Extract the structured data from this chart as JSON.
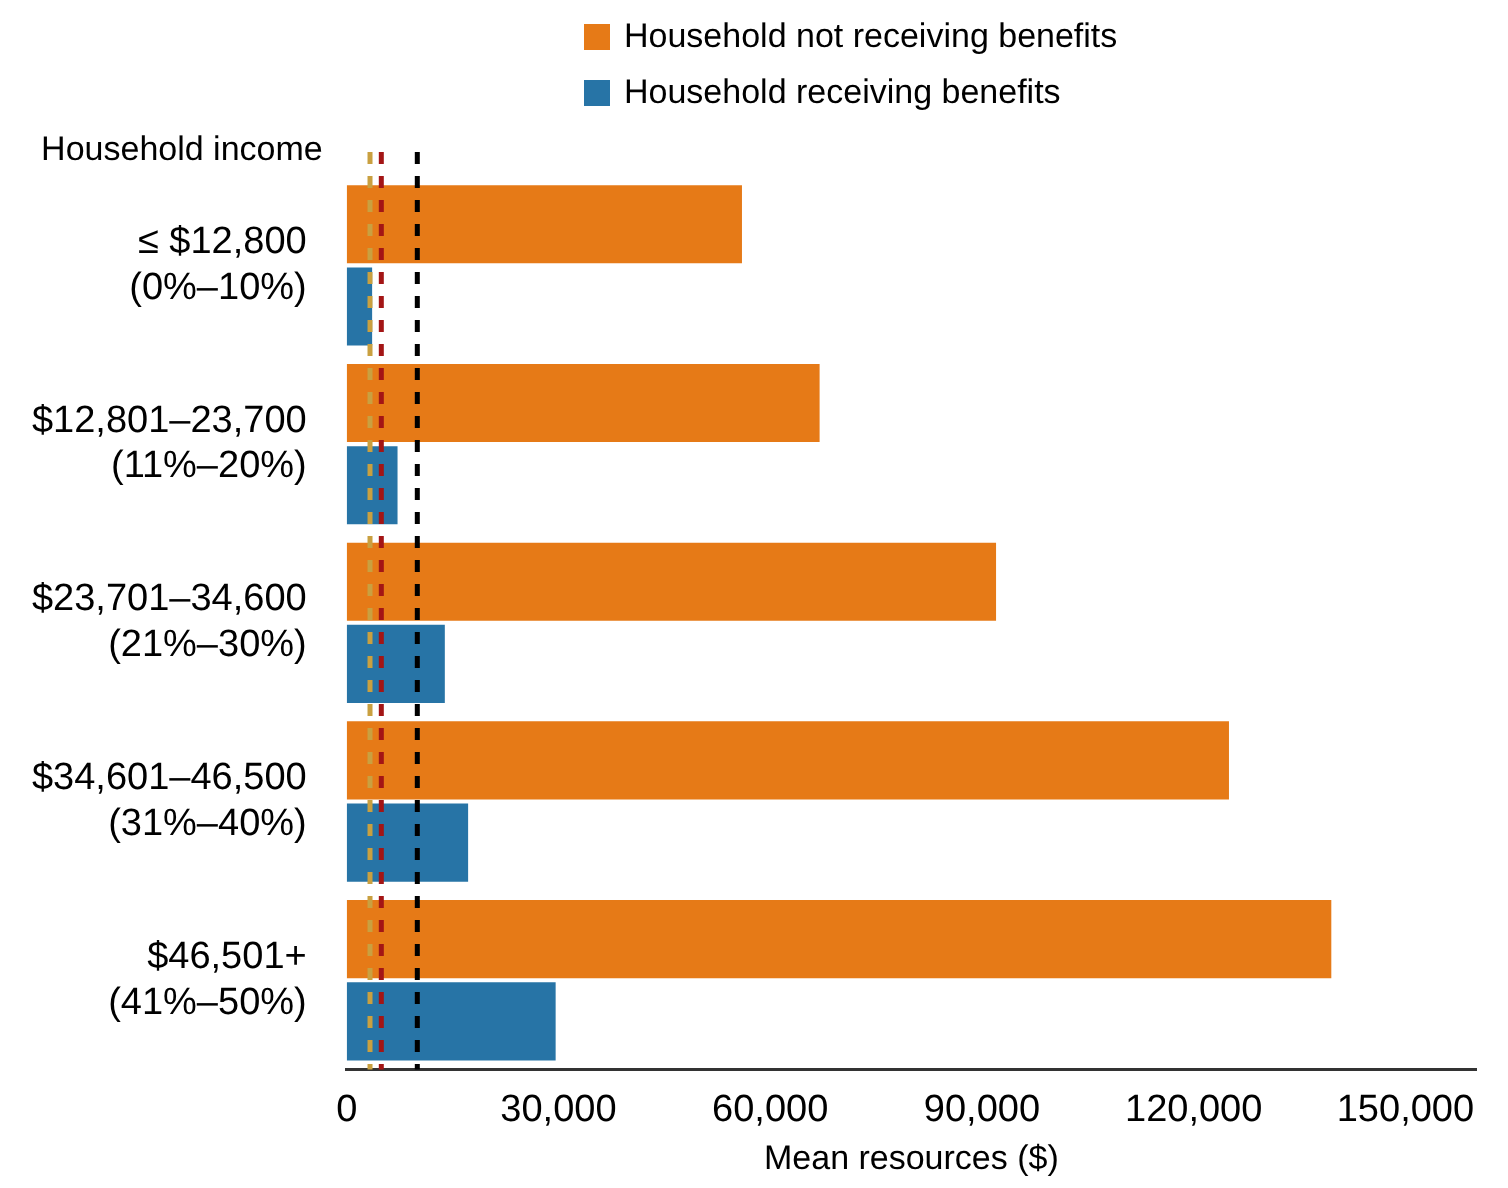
{
  "chart_data": {
    "type": "bar",
    "orientation": "horizontal",
    "ylabel": "Household income",
    "xlabel": "Mean resources ($)",
    "categories": [
      "≤ $12,800\n(0%–10%)",
      "$12,801–23,700\n(11%–20%)",
      "$23,701–34,600\n(21%–30%)",
      "$34,601–46,500\n(31%–40%)",
      "$46,501+\n(41%–50%)"
    ],
    "series": [
      {
        "name": "Household not receiving benefits",
        "color": "#e67a17",
        "values": [
          56000,
          67000,
          92000,
          125000,
          139500
        ]
      },
      {
        "name": "Household receiving benefits",
        "color": "#2774a6",
        "values": [
          3600,
          7200,
          13900,
          17200,
          29600
        ]
      }
    ],
    "xlim": [
      0,
      160000
    ],
    "xticks": [
      {
        "value": 0,
        "label": "0"
      },
      {
        "value": 30000,
        "label": "30,000"
      },
      {
        "value": 60000,
        "label": "60,000"
      },
      {
        "value": 90000,
        "label": "90,000"
      },
      {
        "value": 120000,
        "label": "120,000"
      },
      {
        "value": 150000,
        "label": "150,000"
      }
    ],
    "ref_lines": [
      {
        "axis": "x",
        "value": 3300,
        "color": "#c9a040",
        "line_style": "dashed"
      },
      {
        "axis": "x",
        "value": 4900,
        "color": "#a31515",
        "line_style": "dashed"
      },
      {
        "axis": "x",
        "value": 10000,
        "color": "#000000",
        "line_style": "dashed"
      }
    ],
    "legend": "top",
    "grid": false
  }
}
